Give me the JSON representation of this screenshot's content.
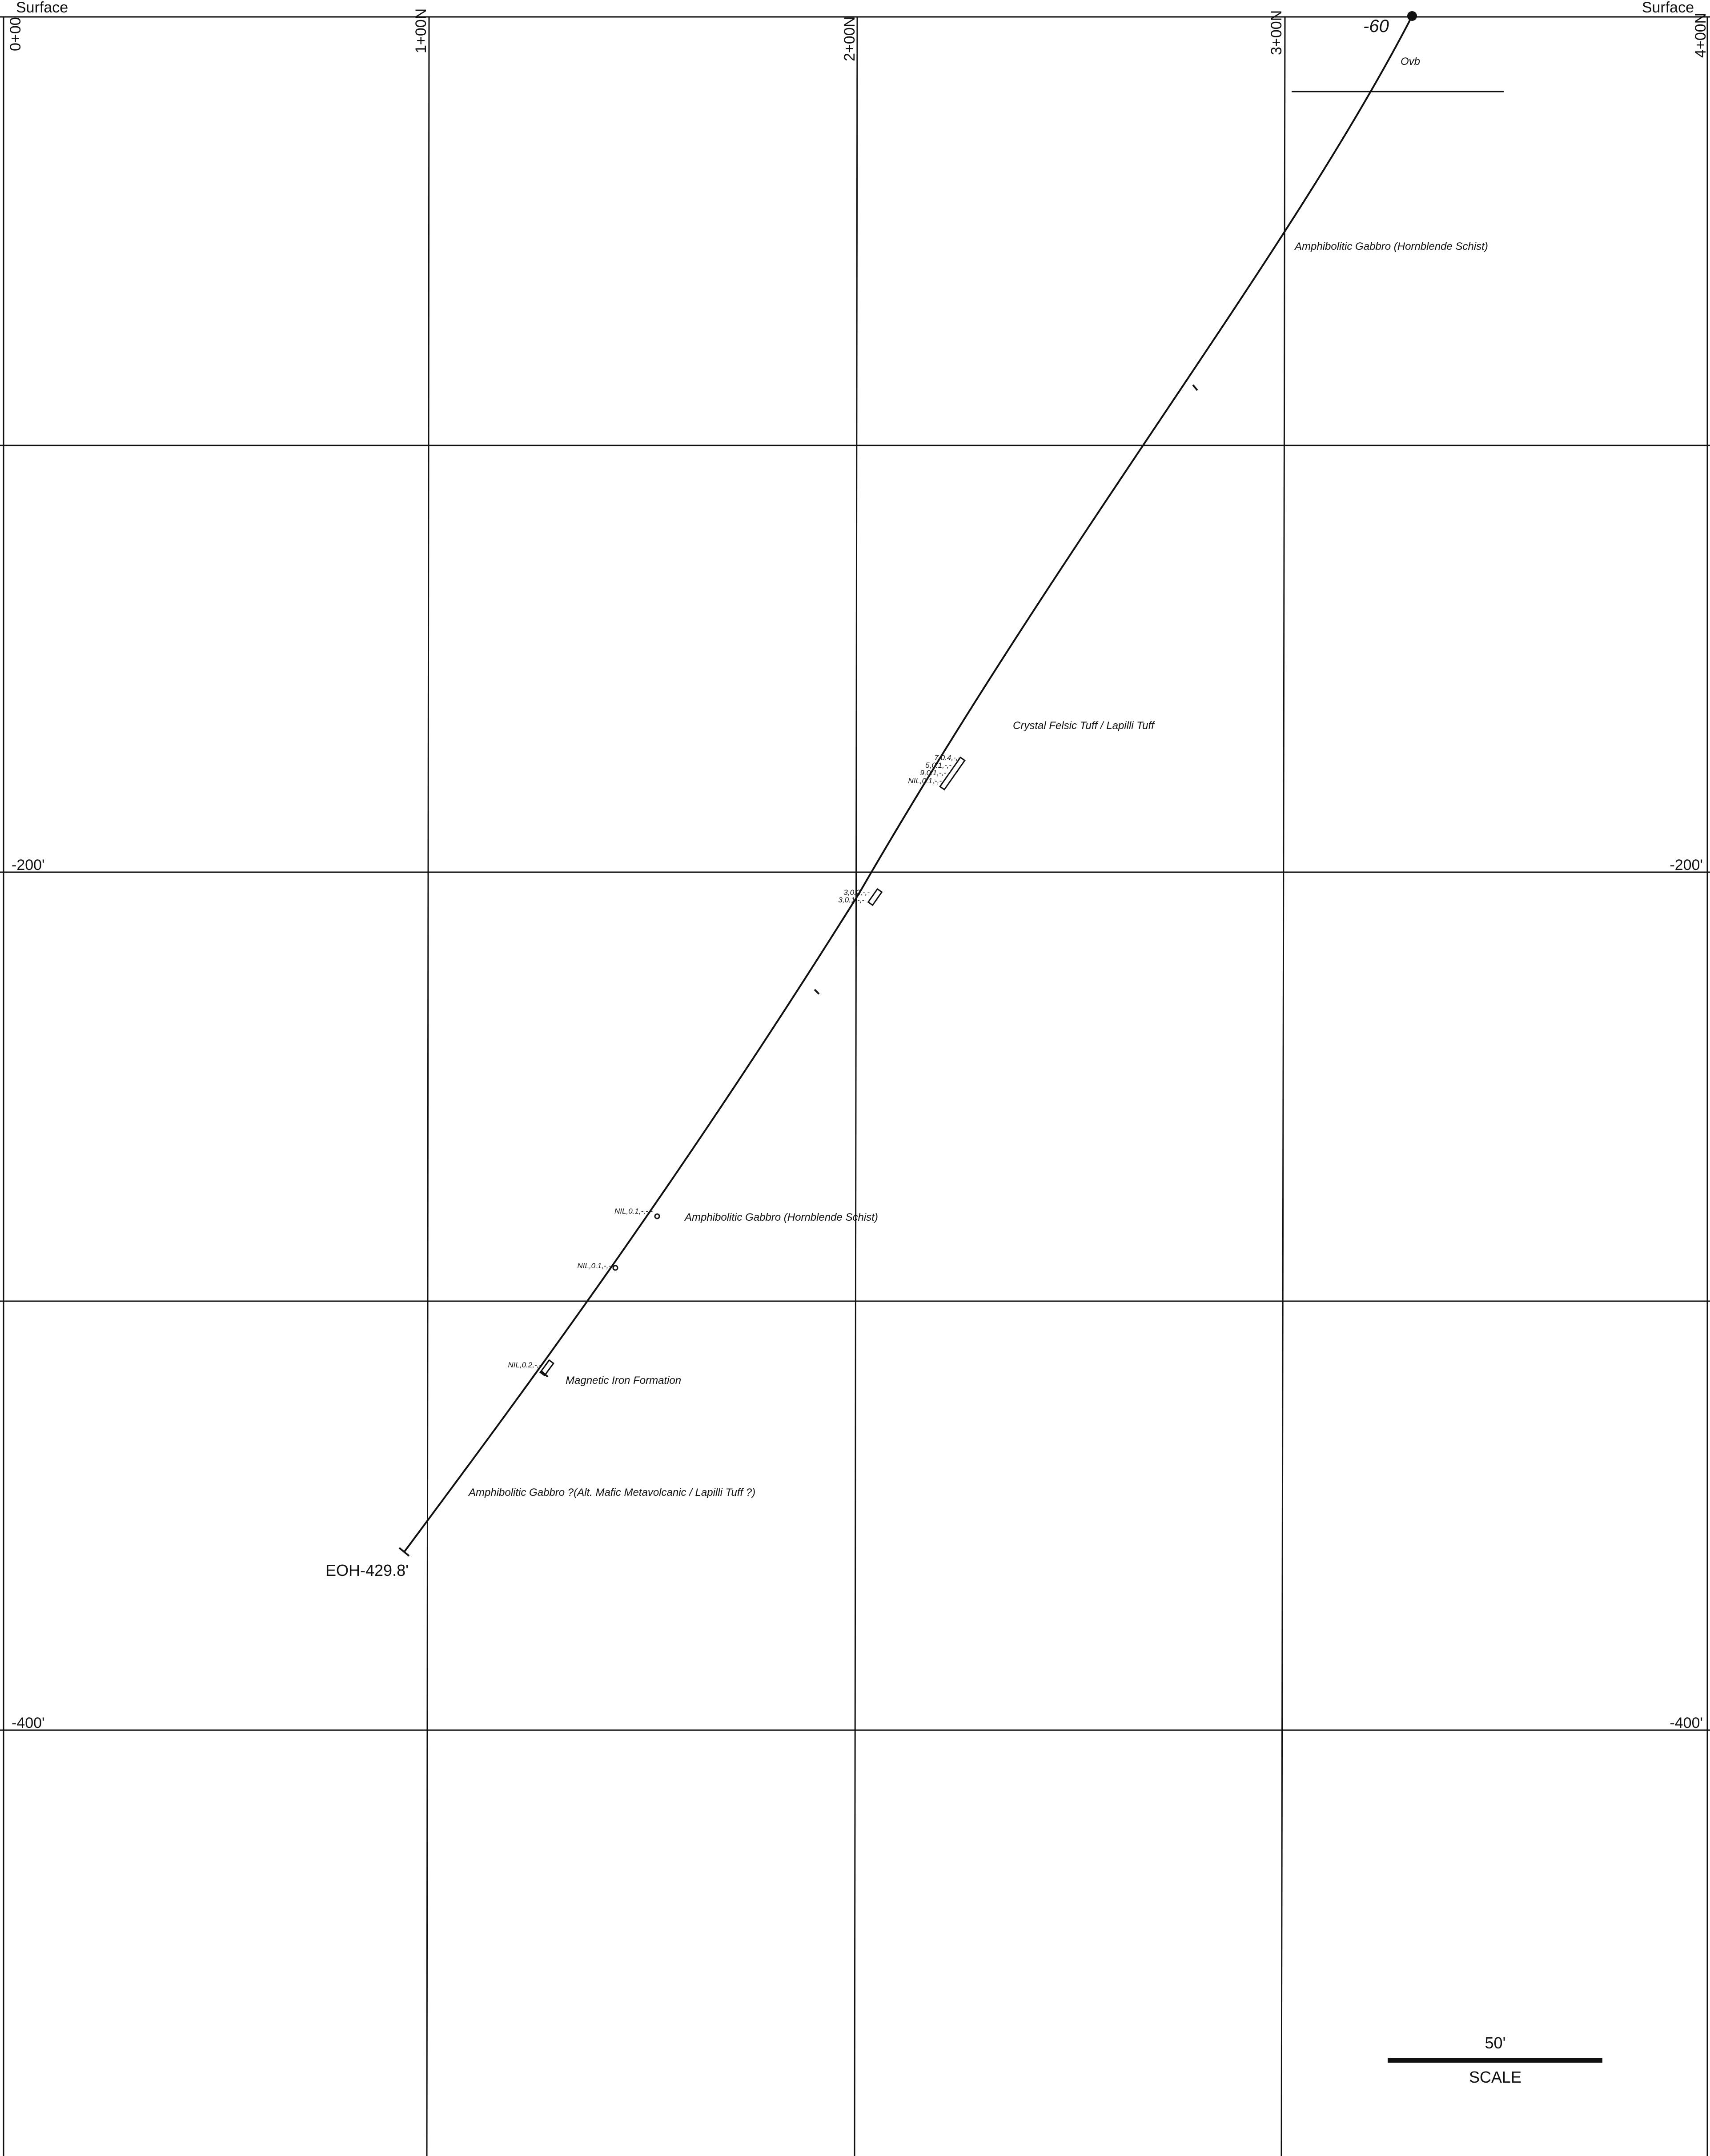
{
  "surface_label_left": "Surface",
  "surface_label_right": "Surface",
  "stations": [
    "0+00",
    "1+00N",
    "2+00N",
    "3+00N",
    "4+00N"
  ],
  "elevation_labels": [
    {
      "left": "-200'",
      "right": "-200'"
    },
    {
      "left": "-400'",
      "right": "-400'"
    }
  ],
  "hole": {
    "dip": "-60",
    "end_of_hole": "EOH-429.8'"
  },
  "units": [
    "Ovb",
    "Amphibolitic Gabbro (Hornblende Schist)",
    "Crystal Felsic Tuff / Lapilli Tuff",
    "Amphibolitic Gabbro (Hornblende Schist)",
    "Magnetic Iron Formation",
    "Amphibolitic Gabbro ?(Alt. Mafic Metavolcanic / Lapilli Tuff ?)"
  ],
  "assays": [
    "7,0.4,-,-",
    "5,0.1,-,-",
    "9,0.1,-,-",
    "NIL,0.1,-,-",
    "3,0.2,-,-",
    "3,0.1,-,-",
    "NIL,0.1,-,-,-",
    "NIL,0.1,-,-",
    "NIL,0.2,-,-"
  ],
  "scale": {
    "value": "50'",
    "label": "SCALE"
  }
}
